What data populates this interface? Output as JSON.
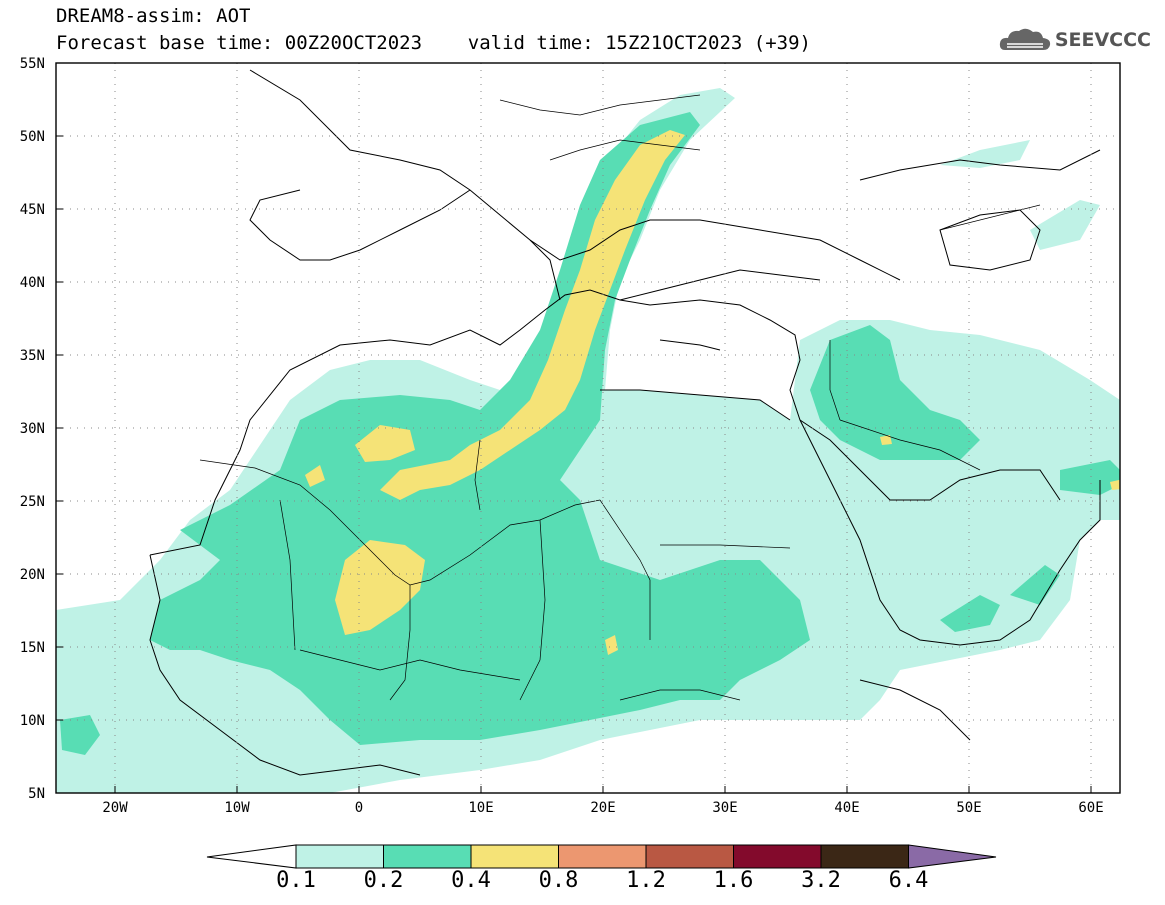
{
  "header": {
    "line1": "DREAM8-assim: AOT",
    "line2": "Forecast base time: 00Z20OCT2023    valid time: 15Z21OCT2023 (+39)"
  },
  "logo": {
    "text": "SEEVCCC",
    "icon": "cloud-icon"
  },
  "map": {
    "lon_labels": [
      "20W",
      "10W",
      "0",
      "10E",
      "20E",
      "30E",
      "40E",
      "50E",
      "60E"
    ],
    "lat_labels": [
      "5N",
      "10N",
      "15N",
      "20N",
      "25N",
      "30N",
      "35N",
      "40N",
      "45N",
      "50N",
      "55N"
    ]
  },
  "colorbar": {
    "labels": [
      "0.1",
      "0.2",
      "0.4",
      "0.8",
      "1.2",
      "1.6",
      "3.2",
      "6.4"
    ],
    "colors": [
      "#ffffff",
      "#bff2e6",
      "#58ddb4",
      "#f5e377",
      "#ec9770",
      "#b95843",
      "#830a2c",
      "#3b2716",
      "#8a6aa6"
    ]
  },
  "colors": {
    "aot_01_02": "#bff2e6",
    "aot_02_04": "#58ddb4",
    "aot_04_08": "#f5e377"
  }
}
